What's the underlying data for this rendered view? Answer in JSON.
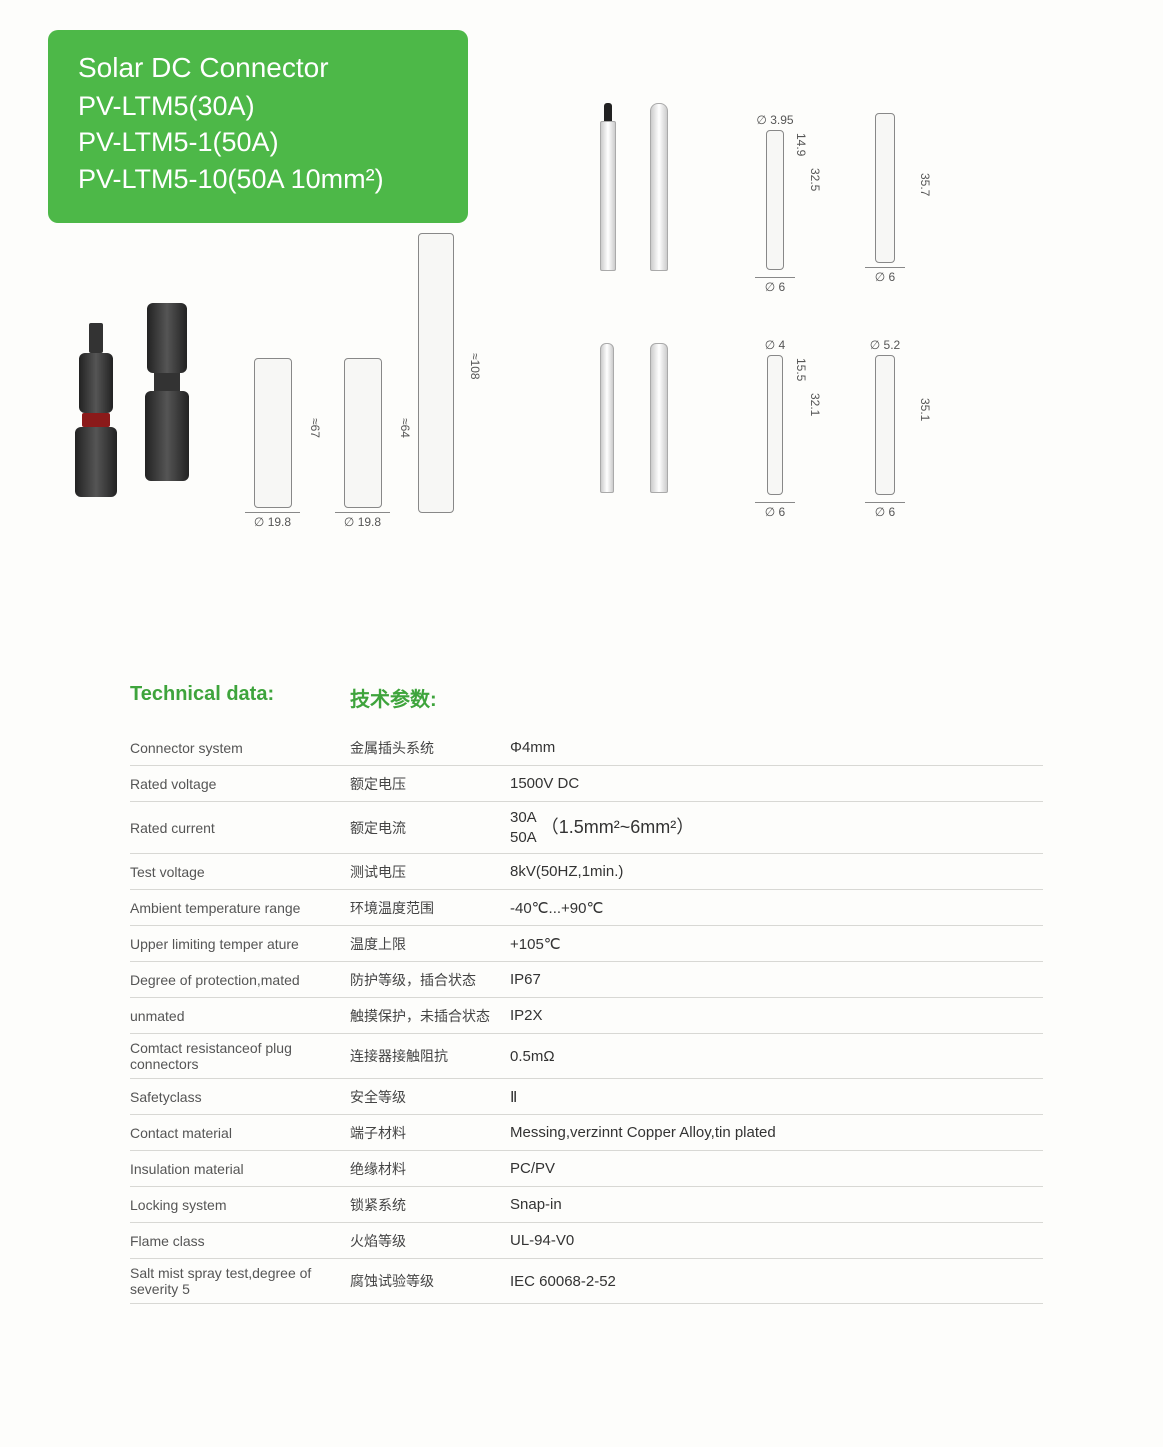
{
  "colors": {
    "brand_green": "#4db848",
    "text_green": "#3ea43c",
    "border": "#d8d8d4",
    "text": "#333333",
    "muted": "#555555",
    "bg": "#fdfdfb"
  },
  "title": {
    "line1": "Solar DC Connector",
    "line2": "PV-LTM5(30A)",
    "line3": "PV-LTM5-1(50A)",
    "line4": "PV-LTM5-10(50A  10mm²)"
  },
  "diagrams": {
    "conn_full_height": "≈108",
    "conn_left_h": "≈67",
    "conn_right_h": "≈64",
    "dia_left": "∅ 19.8",
    "dia_right": "∅ 19.8",
    "pin1": {
      "top": "∅ 3.95",
      "h1": "14.9",
      "h2": "32.5",
      "bot": "∅ 6"
    },
    "pin2": {
      "h": "35.7",
      "bot": "∅ 6"
    },
    "pin3": {
      "top": "∅ 4",
      "h1": "15.5",
      "h2": "32.1",
      "bot": "∅ 6"
    },
    "pin4": {
      "top": "∅ 5.2",
      "h": "35.1",
      "bot": "∅ 6"
    }
  },
  "technical": {
    "header_en": "Technical data:",
    "header_cn": "技术参数:",
    "rows": [
      {
        "en": "Connector system",
        "cn": "金属插头系统",
        "val": "Φ4mm"
      },
      {
        "en": "Rated voltage",
        "cn": "额定电压",
        "val": "1500V DC"
      },
      {
        "en": "Rated current",
        "cn": "额定电流",
        "val_top": "30A",
        "val_bot": "50A",
        "val_range": "（1.5mm²~6mm²）"
      },
      {
        "en": "Test voltage",
        "cn": "测试电压",
        "val": "8kV(50HZ,1min.)"
      },
      {
        "en": "Ambient temperature range",
        "cn": "环境温度范围",
        "val": "-40℃...+90℃"
      },
      {
        "en": "Upper limiting temper ature",
        "cn": "温度上限",
        "val": "+105℃"
      },
      {
        "en": "Degree of protection,mated",
        "cn": "防护等级，插合状态",
        "val": "IP67"
      },
      {
        "en": "unmated",
        "cn": "触摸保护，未插合状态",
        "val": "IP2X"
      },
      {
        "en": "Comtact resistanceof plug connectors",
        "cn": "连接器接触阻抗",
        "val": "0.5mΩ"
      },
      {
        "en": "Safetyclass",
        "cn": "安全等级",
        "val": "Ⅱ"
      },
      {
        "en": "Contact material",
        "cn": "端子材料",
        "val": "Messing,verzinnt    Copper Alloy,tin plated"
      },
      {
        "en": "Insulation material",
        "cn": "绝缘材料",
        "val": "PC/PV"
      },
      {
        "en": "Locking system",
        "cn": "锁紧系统",
        "val": "Snap-in"
      },
      {
        "en": "Flame class",
        "cn": "火焰等级",
        "val": "UL-94-V0"
      },
      {
        "en": "Salt mist spray test,degree of severity 5",
        "cn": "腐蚀试验等级",
        "val": "IEC 60068-2-52"
      }
    ]
  }
}
